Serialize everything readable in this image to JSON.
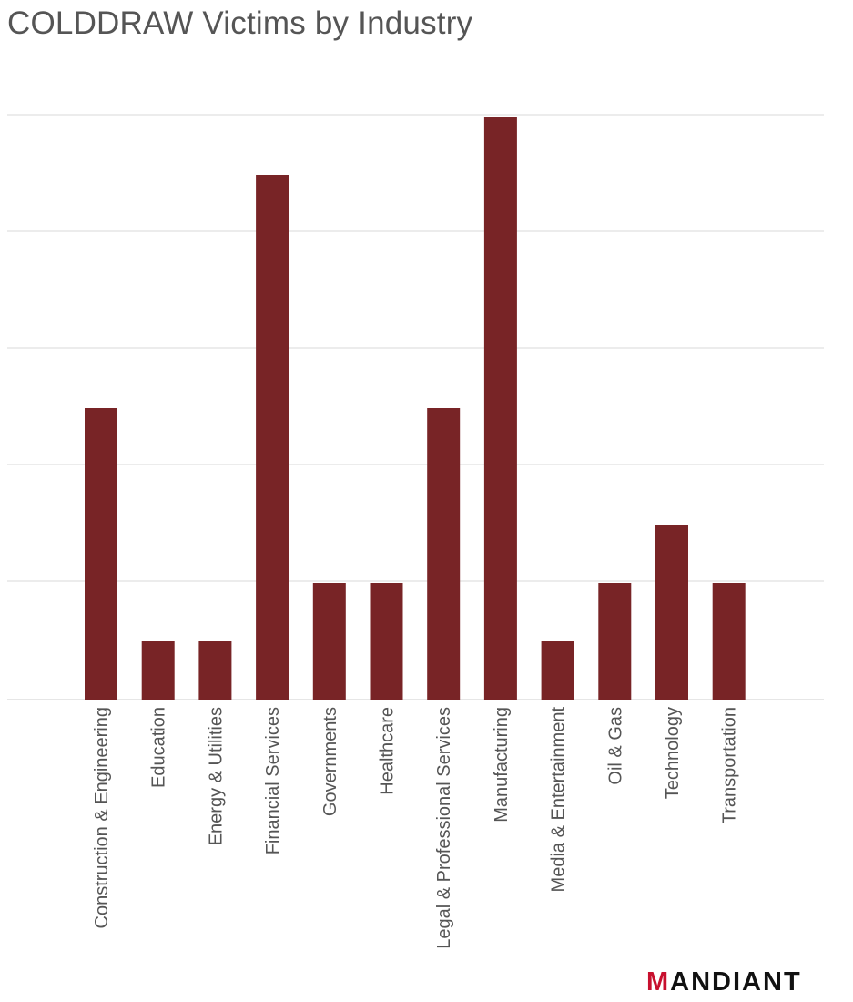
{
  "chart_data": {
    "type": "bar",
    "title": "COLDDRAW Victims by Industry",
    "xlabel": "",
    "ylabel": "",
    "categories": [
      "Construction & Engineering",
      "Education",
      "Energy & Utilities",
      "Financial Services",
      "Governments",
      "Healthcare",
      "Legal & Professional Services",
      "Manufacturing",
      "Media & Entertainment",
      "Oil & Gas",
      "Technology",
      "Transportation"
    ],
    "values": [
      5,
      1,
      1,
      9,
      2,
      2,
      5,
      10,
      1,
      2,
      3,
      2
    ],
    "ylim": [
      0,
      10
    ],
    "grid": true,
    "y_tick_labels_shown": false,
    "colors": {
      "bar": "#782426",
      "grid": "#d9d9d9",
      "text": "#555555"
    }
  },
  "brand": {
    "logo_text": "MANDIANT",
    "logo_accent_color": "#c8102e"
  }
}
